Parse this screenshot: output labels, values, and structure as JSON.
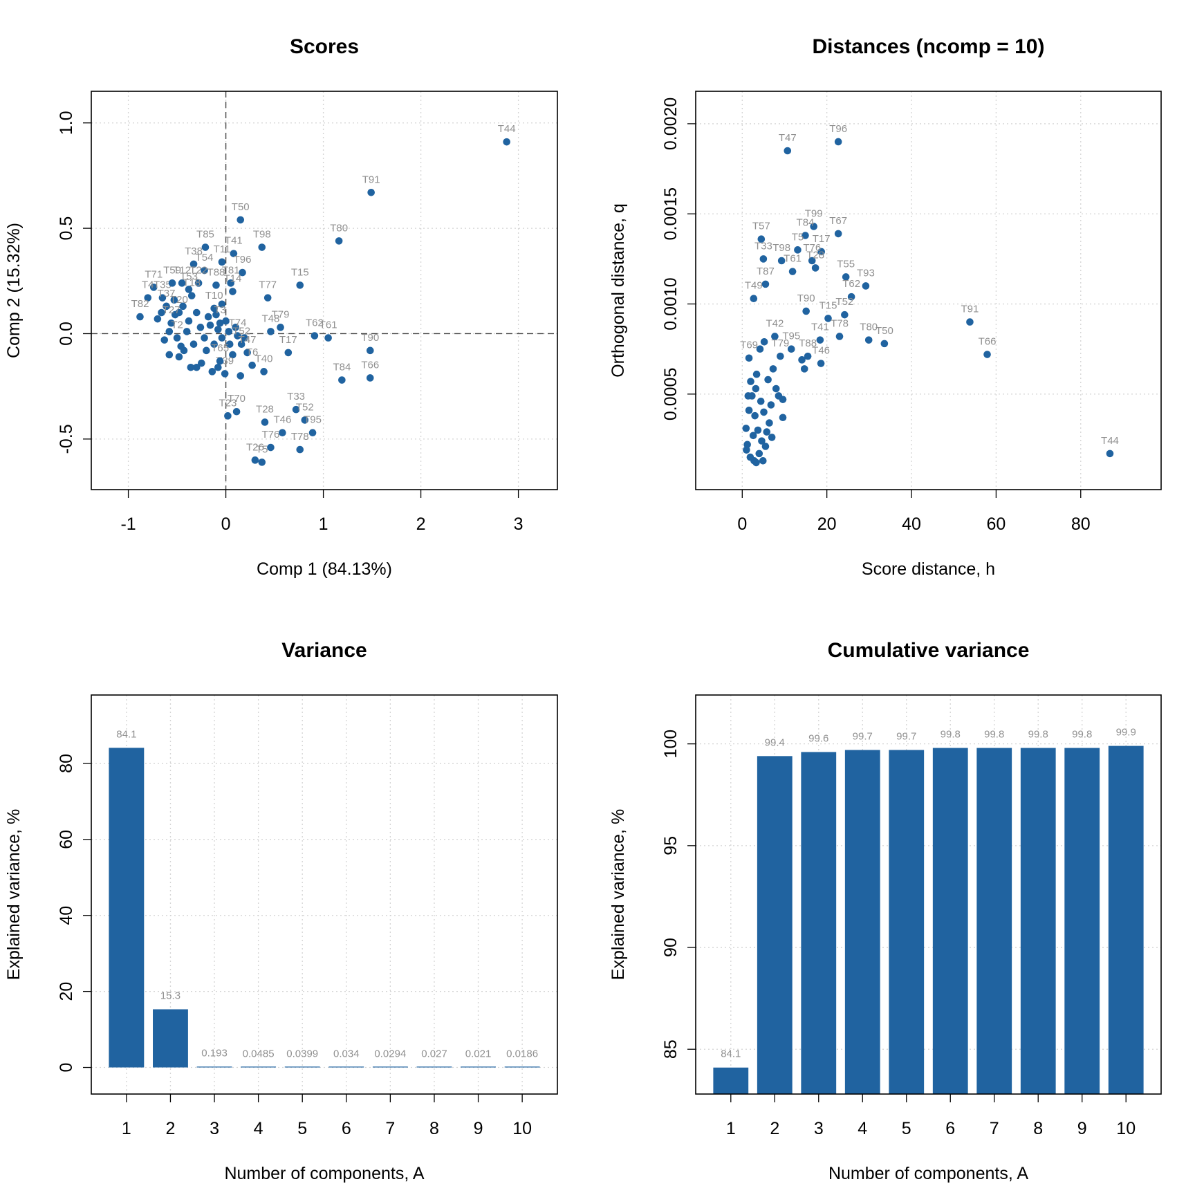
{
  "colors": {
    "marker": "#2063A0",
    "label": "#909090",
    "grid": "#d4d4d4"
  },
  "chart_data": [
    {
      "type": "scatter",
      "title": "Scores",
      "xlabel": "Comp 1 (84.13%)",
      "ylabel": "Comp 2 (15.32%)",
      "xlim": [
        -1.38,
        3.4
      ],
      "ylim": [
        -0.74,
        1.15
      ],
      "xticks": [
        -1,
        0,
        1,
        2,
        3
      ],
      "yticks": [
        -0.5,
        0.0,
        0.5,
        1.0
      ],
      "xtick_labels": [
        "-1",
        "0",
        "1",
        "2",
        "3"
      ],
      "ytick_labels": [
        "-0.5",
        "0.0",
        "0.5",
        "1.0"
      ],
      "grid": true,
      "zero_lines": true,
      "points": [
        {
          "label": "T44",
          "x": 2.88,
          "y": 0.91
        },
        {
          "label": "T91",
          "x": 1.49,
          "y": 0.67
        },
        {
          "label": "T80",
          "x": 1.16,
          "y": 0.44
        },
        {
          "label": "T50",
          "x": 0.15,
          "y": 0.54
        },
        {
          "label": "T98",
          "x": 0.37,
          "y": 0.41
        },
        {
          "label": "T85",
          "x": -0.21,
          "y": 0.41
        },
        {
          "label": "T41",
          "x": 0.08,
          "y": 0.38
        },
        {
          "label": "T11",
          "x": -0.04,
          "y": 0.34
        },
        {
          "label": "T96",
          "x": 0.17,
          "y": 0.29
        },
        {
          "label": "T38",
          "x": -0.33,
          "y": 0.33
        },
        {
          "label": "T54",
          "x": -0.22,
          "y": 0.3
        },
        {
          "label": "T81",
          "x": 0.05,
          "y": 0.24
        },
        {
          "label": "T88",
          "x": -0.1,
          "y": 0.23
        },
        {
          "label": "T14",
          "x": 0.07,
          "y": 0.2
        },
        {
          "label": "T77",
          "x": 0.43,
          "y": 0.17
        },
        {
          "label": "T15",
          "x": 0.76,
          "y": 0.23
        },
        {
          "label": "T71",
          "x": -0.74,
          "y": 0.22
        },
        {
          "label": "T4",
          "x": -0.8,
          "y": 0.17
        },
        {
          "label": "T82",
          "x": -0.88,
          "y": 0.08
        },
        {
          "label": "T35",
          "x": -0.65,
          "y": 0.17
        },
        {
          "label": "T37",
          "x": -0.61,
          "y": 0.13
        },
        {
          "label": "T59",
          "x": -0.55,
          "y": 0.24
        },
        {
          "label": "T12",
          "x": -0.45,
          "y": 0.24
        },
        {
          "label": "T22",
          "x": -0.28,
          "y": 0.24
        },
        {
          "label": "T53",
          "x": -0.38,
          "y": 0.21
        },
        {
          "label": "T18",
          "x": -0.35,
          "y": 0.18
        },
        {
          "label": "T10",
          "x": -0.12,
          "y": 0.12
        },
        {
          "label": "T20",
          "x": -0.48,
          "y": 0.1
        },
        {
          "label": "T27",
          "x": -0.56,
          "y": 0.05
        },
        {
          "label": "T2",
          "x": -0.5,
          "y": -0.02
        },
        {
          "label": "T3",
          "x": -0.06,
          "y": 0.05
        },
        {
          "label": "T48",
          "x": 0.46,
          "y": 0.01
        },
        {
          "label": "T79",
          "x": 0.56,
          "y": 0.03
        },
        {
          "label": "T62",
          "x": 0.91,
          "y": -0.01
        },
        {
          "label": "T61",
          "x": 1.05,
          "y": -0.02
        },
        {
          "label": "T90",
          "x": 1.48,
          "y": -0.08
        },
        {
          "label": "T17",
          "x": 0.64,
          "y": -0.09
        },
        {
          "label": "T74",
          "x": 0.12,
          "y": -0.01
        },
        {
          "label": "T52",
          "x": 0.16,
          "y": -0.05
        },
        {
          "label": "T47",
          "x": 0.22,
          "y": -0.09
        },
        {
          "label": "T40",
          "x": 0.39,
          "y": -0.18
        },
        {
          "label": "T6",
          "x": 0.27,
          "y": -0.15
        },
        {
          "label": "T39",
          "x": -0.01,
          "y": -0.19
        },
        {
          "label": "T65",
          "x": -0.06,
          "y": -0.13
        },
        {
          "label": "T84",
          "x": 1.19,
          "y": -0.22
        },
        {
          "label": "T66",
          "x": 1.48,
          "y": -0.21
        },
        {
          "label": "T23",
          "x": 0.02,
          "y": -0.39
        },
        {
          "label": "T70",
          "x": 0.11,
          "y": -0.37
        },
        {
          "label": "T28",
          "x": 0.4,
          "y": -0.42
        },
        {
          "label": "T33",
          "x": 0.72,
          "y": -0.36
        },
        {
          "label": "T52",
          "x": 0.81,
          "y": -0.41
        },
        {
          "label": "T46",
          "x": 0.58,
          "y": -0.47
        },
        {
          "label": "T95",
          "x": 0.89,
          "y": -0.47
        },
        {
          "label": "T76",
          "x": 0.46,
          "y": -0.54
        },
        {
          "label": "T78",
          "x": 0.76,
          "y": -0.55
        },
        {
          "label": "T26",
          "x": 0.3,
          "y": -0.6
        },
        {
          "label": "T5",
          "x": 0.37,
          "y": -0.61
        }
      ],
      "extra_points": [
        [
          -0.63,
          -0.03
        ],
        [
          -0.58,
          -0.1
        ],
        [
          -0.48,
          -0.11
        ],
        [
          -0.43,
          -0.08
        ],
        [
          -0.4,
          0.01
        ],
        [
          -0.36,
          -0.16
        ],
        [
          -0.3,
          -0.16
        ],
        [
          -0.25,
          -0.14
        ],
        [
          -0.2,
          -0.08
        ],
        [
          -0.14,
          -0.18
        ],
        [
          -0.12,
          -0.05
        ],
        [
          -0.08,
          0.02
        ],
        [
          0.0,
          0.06
        ],
        [
          0.04,
          -0.05
        ],
        [
          0.07,
          -0.1
        ],
        [
          -0.33,
          -0.05
        ],
        [
          -0.26,
          0.03
        ],
        [
          -0.18,
          0.08
        ],
        [
          -0.52,
          0.09
        ],
        [
          -0.44,
          0.13
        ],
        [
          -0.7,
          0.07
        ],
        [
          -0.58,
          0.01
        ],
        [
          -0.46,
          -0.06
        ],
        [
          -0.38,
          0.06
        ],
        [
          -0.3,
          0.1
        ],
        [
          -0.22,
          -0.02
        ],
        [
          -0.16,
          0.04
        ],
        [
          -0.1,
          0.09
        ],
        [
          -0.04,
          -0.02
        ],
        [
          0.03,
          0.01
        ],
        [
          0.1,
          0.03
        ],
        [
          0.19,
          -0.02
        ],
        [
          -0.66,
          0.1
        ],
        [
          -0.08,
          -0.16
        ],
        [
          0.15,
          -0.2
        ],
        [
          -0.04,
          0.14
        ],
        [
          -0.53,
          0.16
        ]
      ]
    },
    {
      "type": "scatter",
      "title": "Distances (ncomp = 10)",
      "xlabel": "Score distance, h",
      "ylabel": "Orthogonal distance, q",
      "xlim": [
        -11,
        99
      ],
      "ylim": [
        -3e-05,
        0.00218
      ],
      "xticks": [
        0,
        20,
        40,
        60,
        80
      ],
      "yticks": [
        0.0005,
        0.001,
        0.0015,
        0.002
      ],
      "xtick_labels": [
        "0",
        "20",
        "40",
        "60",
        "80"
      ],
      "ytick_labels": [
        "0.0005",
        "0.0010",
        "0.0015",
        "0.0020"
      ],
      "grid": true,
      "points": [
        {
          "label": "T47",
          "x": 10.7,
          "y": 0.00185
        },
        {
          "label": "T96",
          "x": 22.7,
          "y": 0.0019
        },
        {
          "label": "T99",
          "x": 16.9,
          "y": 0.00143
        },
        {
          "label": "T67",
          "x": 22.7,
          "y": 0.00139
        },
        {
          "label": "T84",
          "x": 14.9,
          "y": 0.00138
        },
        {
          "label": "T57",
          "x": 4.5,
          "y": 0.00136
        },
        {
          "label": "T5",
          "x": 13.1,
          "y": 0.0013
        },
        {
          "label": "T17",
          "x": 18.7,
          "y": 0.00129
        },
        {
          "label": "T76",
          "x": 16.5,
          "y": 0.00124
        },
        {
          "label": "T33",
          "x": 5.0,
          "y": 0.00125
        },
        {
          "label": "T98",
          "x": 9.3,
          "y": 0.00124
        },
        {
          "label": "T28",
          "x": 17.3,
          "y": 0.0012
        },
        {
          "label": "T61",
          "x": 11.9,
          "y": 0.00118
        },
        {
          "label": "T87",
          "x": 5.5,
          "y": 0.00111
        },
        {
          "label": "T55",
          "x": 24.5,
          "y": 0.00115
        },
        {
          "label": "T93",
          "x": 29.2,
          "y": 0.0011
        },
        {
          "label": "T49",
          "x": 2.7,
          "y": 0.00103
        },
        {
          "label": "T62",
          "x": 25.8,
          "y": 0.00104
        },
        {
          "label": "T90",
          "x": 15.1,
          "y": 0.00096
        },
        {
          "label": "T15",
          "x": 20.3,
          "y": 0.00092
        },
        {
          "label": "T52",
          "x": 24.2,
          "y": 0.00094
        },
        {
          "label": "T91",
          "x": 53.8,
          "y": 0.0009
        },
        {
          "label": "T80",
          "x": 29.9,
          "y": 0.0008
        },
        {
          "label": "T50",
          "x": 33.6,
          "y": 0.00078
        },
        {
          "label": "T66",
          "x": 57.9,
          "y": 0.00072
        },
        {
          "label": "T41",
          "x": 18.4,
          "y": 0.0008
        },
        {
          "label": "T78",
          "x": 23.0,
          "y": 0.00082
        },
        {
          "label": "T42",
          "x": 7.7,
          "y": 0.00082
        },
        {
          "label": "T95",
          "x": 11.6,
          "y": 0.00075
        },
        {
          "label": "T88",
          "x": 15.5,
          "y": 0.00071
        },
        {
          "label": "T46",
          "x": 18.6,
          "y": 0.00067
        },
        {
          "label": "T69",
          "x": 1.6,
          "y": 0.0007
        },
        {
          "label": "T79",
          "x": 9.0,
          "y": 0.00071
        },
        {
          "label": "T44",
          "x": 86.9,
          "y": 0.00017
        }
      ],
      "extra_points": [
        [
          14.7,
          0.00064
        ],
        [
          14.1,
          0.00069
        ],
        [
          7.3,
          0.00064
        ],
        [
          5.2,
          0.00079
        ],
        [
          4.2,
          0.00075
        ],
        [
          3.4,
          0.00061
        ],
        [
          6.1,
          0.00058
        ],
        [
          8.0,
          0.00053
        ],
        [
          9.6,
          0.00047
        ],
        [
          9.6,
          0.00037
        ],
        [
          7.0,
          0.00026
        ],
        [
          5.5,
          0.00021
        ],
        [
          4.0,
          0.00017
        ],
        [
          2.8,
          0.00013
        ],
        [
          1.9,
          0.00015
        ],
        [
          1.2,
          0.00022
        ],
        [
          0.9,
          0.00031
        ],
        [
          1.6,
          0.00041
        ],
        [
          2.3,
          0.00049
        ],
        [
          3.2,
          0.00053
        ],
        [
          4.4,
          0.00046
        ],
        [
          5.1,
          0.0004
        ],
        [
          6.4,
          0.00034
        ],
        [
          3.7,
          0.0003
        ],
        [
          2.6,
          0.00027
        ],
        [
          4.6,
          0.00024
        ],
        [
          6.8,
          0.00044
        ],
        [
          3.0,
          0.00038
        ],
        [
          1.4,
          0.00049
        ],
        [
          2.0,
          0.00057
        ],
        [
          5.8,
          0.00029
        ],
        [
          3.3,
          0.00012
        ],
        [
          1.0,
          0.00019
        ],
        [
          4.9,
          0.00013
        ],
        [
          8.6,
          0.00049
        ]
      ]
    },
    {
      "type": "bar",
      "title": "Variance",
      "xlabel": "Number of components, A",
      "ylabel": "Explained variance, %",
      "categories": [
        "1",
        "2",
        "3",
        "4",
        "5",
        "6",
        "7",
        "8",
        "9",
        "10"
      ],
      "values": [
        84.1,
        15.3,
        0.193,
        0.0485,
        0.0399,
        0.034,
        0.0294,
        0.027,
        0.021,
        0.0186
      ],
      "value_labels": [
        "84.1",
        "15.3",
        "0.193",
        "0.0485",
        "0.0399",
        "0.034",
        "0.0294",
        "0.027",
        "0.021",
        "0.0186"
      ],
      "ylim": [
        -7,
        98
      ],
      "yticks": [
        0,
        20,
        40,
        60,
        80
      ],
      "ytick_labels": [
        "0",
        "20",
        "40",
        "60",
        "80"
      ],
      "grid": true
    },
    {
      "type": "bar",
      "title": "Cumulative variance",
      "xlabel": "Number of components, A",
      "ylabel": "Explained variance, %",
      "categories": [
        "1",
        "2",
        "3",
        "4",
        "5",
        "6",
        "7",
        "8",
        "9",
        "10"
      ],
      "values": [
        84.1,
        99.4,
        99.6,
        99.7,
        99.7,
        99.8,
        99.8,
        99.8,
        99.8,
        99.9
      ],
      "value_labels": [
        "84.1",
        "99.4",
        "99.6",
        "99.7",
        "99.7",
        "99.8",
        "99.8",
        "99.8",
        "99.8",
        "99.9"
      ],
      "ylim": [
        82.8,
        102.4
      ],
      "yticks": [
        85,
        90,
        95,
        100
      ],
      "ytick_labels": [
        "85",
        "90",
        "95",
        "100"
      ],
      "grid": true
    }
  ]
}
